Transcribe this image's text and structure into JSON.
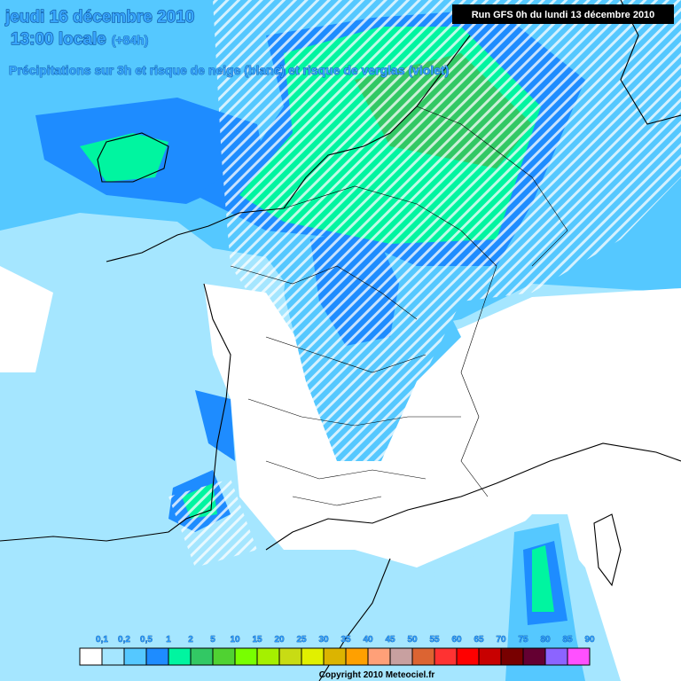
{
  "header": {
    "date": "jeudi 16 décembre 2010",
    "time": "13:00 locale",
    "lead": "(+84h)",
    "description": "Précipitations sur 3h et risque de neige (blanc) et risque de verglas (violet)",
    "run": "Run GFS 0h du lundi 13 décembre 2010"
  },
  "legend": {
    "items": [
      {
        "label": "0,1",
        "color": "#ffffff"
      },
      {
        "label": "0,2",
        "color": "#a5e6ff"
      },
      {
        "label": "0,5",
        "color": "#55c8ff"
      },
      {
        "label": "1",
        "color": "#1e8cff"
      },
      {
        "label": "2",
        "color": "#00f5a0"
      },
      {
        "label": "5",
        "color": "#32c864"
      },
      {
        "label": "10",
        "color": "#50d232"
      },
      {
        "label": "15",
        "color": "#78ff00"
      },
      {
        "label": "20",
        "color": "#a5f000"
      },
      {
        "label": "25",
        "color": "#c8dc14"
      },
      {
        "label": "30",
        "color": "#e1f000"
      },
      {
        "label": "35",
        "color": "#dcb400"
      },
      {
        "label": "40",
        "color": "#ffa000"
      },
      {
        "label": "45",
        "color": "#ffa078"
      },
      {
        "label": "50",
        "color": "#c8a0a0"
      },
      {
        "label": "55",
        "color": "#dc6432"
      },
      {
        "label": "60",
        "color": "#ff3232"
      },
      {
        "label": "65",
        "color": "#ff0000"
      },
      {
        "label": "70",
        "color": "#c80000"
      },
      {
        "label": "75",
        "color": "#780000"
      },
      {
        "label": "80",
        "color": "#640032"
      },
      {
        "label": "85",
        "color": "#8c64ff"
      },
      {
        "label": "90",
        "color": "#ff50ff"
      }
    ]
  },
  "footer": {
    "copyright": "Copyright 2010 Meteociel.fr"
  }
}
